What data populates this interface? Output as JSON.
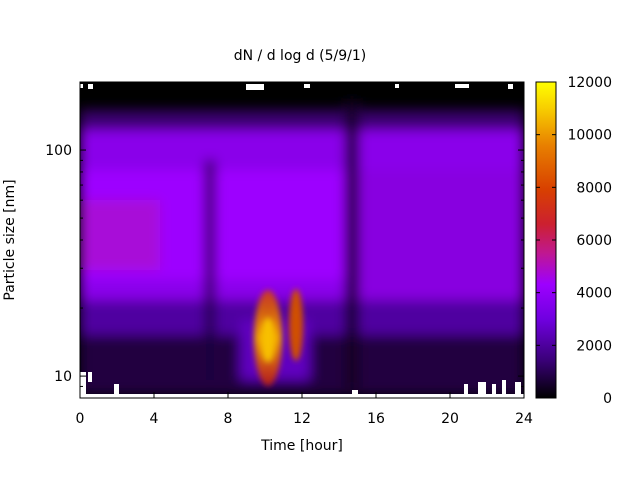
{
  "chart_data": {
    "type": "heatmap",
    "title": "dN / d log d (5/9/1)",
    "xlabel": "Time [hour]",
    "ylabel": "Particle size [nm]",
    "xlim": [
      0,
      24
    ],
    "ylim": [
      8,
      200
    ],
    "y_scale": "log",
    "x_ticks": [
      0,
      4,
      8,
      12,
      16,
      20,
      24
    ],
    "y_ticks": [
      10,
      100
    ],
    "colorbar": {
      "range": [
        0,
        12000
      ],
      "ticks": [
        0,
        2000,
        4000,
        6000,
        8000,
        10000,
        12000
      ],
      "colors": [
        "#000000",
        "#5200a8",
        "#9d00ff",
        "#c8208a",
        "#d84000",
        "#f0a000",
        "#ffff00"
      ]
    },
    "grid": false,
    "legend": "none"
  }
}
